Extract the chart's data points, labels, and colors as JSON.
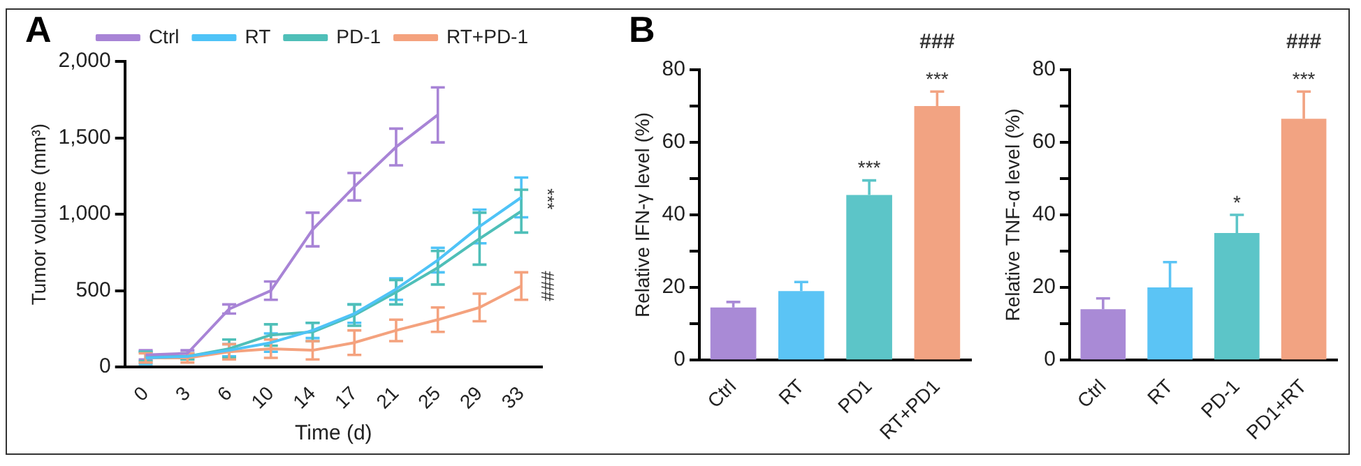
{
  "chart_data": [
    {
      "type": "line",
      "title": "A",
      "xlabel": "Time (d)",
      "ylabel": "Tumor volume (mm³)",
      "categories": [
        "0",
        "3",
        "6",
        "10",
        "14",
        "17",
        "21",
        "25",
        "29",
        "33"
      ],
      "ylim": [
        0,
        2000
      ],
      "yticks": [
        0,
        500,
        {
          "value": 1000,
          "label": "1,000"
        },
        {
          "value": 1500,
          "label": "1,500"
        },
        {
          "value": 2000,
          "label": "2,000"
        }
      ],
      "grid": false,
      "legend": "top",
      "series": [
        {
          "name": "Ctrl",
          "color": "#a884d6",
          "values": [
            80,
            90,
            380,
            500,
            900,
            1180,
            1440,
            1650,
            null,
            null
          ],
          "errors": [
            30,
            20,
            30,
            60,
            110,
            90,
            120,
            180,
            null,
            null
          ]
        },
        {
          "name": "RT",
          "color": "#4fc3f7",
          "values": [
            60,
            70,
            110,
            160,
            240,
            350,
            510,
            700,
            920,
            1110
          ],
          "errors": [
            40,
            20,
            40,
            60,
            50,
            60,
            70,
            80,
            110,
            130
          ]
        },
        {
          "name": "PD-1",
          "color": "#4fbfb8",
          "values": [
            70,
            70,
            120,
            210,
            230,
            340,
            490,
            650,
            840,
            1020
          ],
          "errors": [
            30,
            20,
            60,
            70,
            60,
            70,
            80,
            110,
            170,
            140
          ]
        },
        {
          "name": "RT+PD-1",
          "color": "#f4a27e",
          "values": [
            60,
            60,
            100,
            120,
            110,
            160,
            240,
            310,
            390,
            530
          ],
          "errors": [
            30,
            30,
            50,
            60,
            60,
            80,
            70,
            80,
            90,
            90
          ]
        }
      ],
      "annotations": [
        {
          "text": "***",
          "x": "33",
          "y": 1100
        },
        {
          "text": "###",
          "x": "33",
          "y": 530
        }
      ]
    },
    {
      "type": "bar",
      "title": "B",
      "ylabel": "Relative IFN-γ level (%)",
      "categories": [
        "Ctrl",
        "RT",
        "PD1",
        "RT+PD1"
      ],
      "values": [
        14.5,
        19,
        45.5,
        70
      ],
      "errors": [
        1.5,
        2.5,
        4,
        4
      ],
      "colors": [
        "#a98ad6",
        "#5bc4f5",
        "#5cc5c8",
        "#f2a382"
      ],
      "ylim": [
        0,
        80
      ],
      "yticks": [
        0,
        {
          "value": 10,
          "label": null
        },
        20,
        {
          "value": 30,
          "label": null
        },
        40,
        {
          "value": 50,
          "label": null
        },
        60,
        {
          "value": 70,
          "label": null
        },
        80
      ],
      "grid": false,
      "annotations": [
        {
          "text": "***",
          "x": "PD1",
          "y": 49.5
        },
        {
          "text": "***",
          "x": "RT+PD1",
          "y": 74
        },
        "###"
      ]
    },
    {
      "type": "bar",
      "ylabel": "Relative TNF-α level (%)",
      "categories": [
        "Ctrl",
        "RT",
        "PD-1",
        "PD1+RT"
      ],
      "values": [
        14,
        20,
        35,
        66.5
      ],
      "errors": [
        3,
        7,
        5,
        7.5
      ],
      "colors": [
        "#a98ad6",
        "#5bc4f5",
        "#5cc5c8",
        "#f2a382"
      ],
      "ylim": [
        0,
        80
      ],
      "yticks": [
        0,
        {
          "value": 10,
          "label": null
        },
        20,
        {
          "value": 30,
          "label": null
        },
        40,
        {
          "value": 50,
          "label": null
        },
        60,
        {
          "value": 70,
          "label": null
        },
        80
      ],
      "grid": false,
      "annotations": [
        {
          "text": "*",
          "x": "PD-1",
          "y": 40
        },
        {
          "text": "***",
          "x": "PD1+RT",
          "y": 74
        },
        "###"
      ]
    }
  ]
}
